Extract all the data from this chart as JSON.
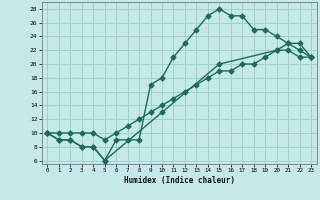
{
  "xlabel": "Humidex (Indice chaleur)",
  "bg_color": "#c5e8e8",
  "grid_color": "#9fcfcf",
  "line_color": "#1e6b5e",
  "xlim": [
    -0.5,
    23.5
  ],
  "ylim": [
    5.5,
    29
  ],
  "xticks": [
    0,
    1,
    2,
    3,
    4,
    5,
    6,
    7,
    8,
    9,
    10,
    11,
    12,
    13,
    14,
    15,
    16,
    17,
    18,
    19,
    20,
    21,
    22,
    23
  ],
  "yticks": [
    6,
    8,
    10,
    12,
    14,
    16,
    18,
    20,
    22,
    24,
    26,
    28
  ],
  "curve1_x": [
    0,
    1,
    2,
    3,
    4,
    5,
    6,
    7,
    8,
    9,
    10,
    11,
    12,
    13,
    14,
    15,
    16,
    17,
    18,
    19,
    20,
    21,
    22,
    23
  ],
  "curve1_y": [
    10,
    9,
    9,
    8,
    8,
    6,
    9,
    9,
    9,
    17,
    18,
    21,
    23,
    25,
    27,
    28,
    27,
    27,
    25,
    25,
    24,
    23,
    22,
    21
  ],
  "curve2_x": [
    0,
    1,
    2,
    3,
    4,
    5,
    10,
    15,
    20,
    21,
    22,
    23
  ],
  "curve2_y": [
    10,
    9,
    9,
    8,
    8,
    6,
    13,
    20,
    22,
    22,
    21,
    21
  ],
  "curve3_x": [
    0,
    1,
    2,
    3,
    4,
    5,
    6,
    7,
    8,
    9,
    10,
    11,
    12,
    13,
    14,
    15,
    16,
    17,
    18,
    19,
    20,
    21,
    22,
    23
  ],
  "curve3_y": [
    10,
    10,
    10,
    10,
    10,
    9,
    10,
    11,
    12,
    13,
    14,
    15,
    16,
    17,
    18,
    19,
    19,
    20,
    20,
    21,
    22,
    23,
    23,
    21
  ],
  "marker": "D",
  "markersize": 2.5,
  "linewidth": 1.0
}
